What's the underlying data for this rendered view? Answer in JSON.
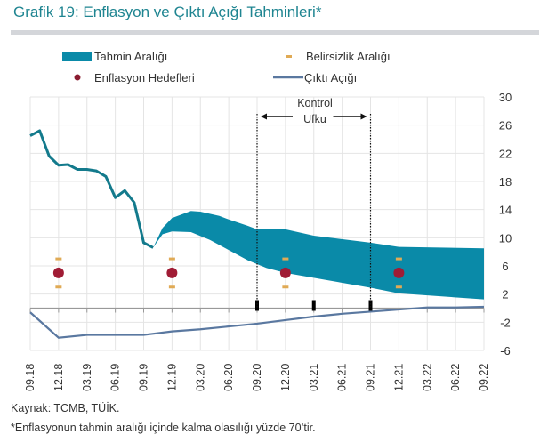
{
  "title": "Grafik 19: Enflasyon ve Çıktı Açığı Tahminleri*",
  "footer": {
    "source": "Kaynak: TCMB, TÜİK.",
    "note": "*Enflasyonun tahmin aralığı içinde kalma olasılığı yüzde 70’tir."
  },
  "colors": {
    "band": "#0a8aa8",
    "inflation": "#137a8c",
    "target": "#a01c35",
    "uncertainty": "#e0aa55",
    "output_gap": "#5a78a0",
    "title": "#1f8591"
  },
  "chart_data": {
    "type": "area",
    "legend": {
      "position": "top",
      "items": [
        "Tahmin Aralığı",
        "Belirsizlik Aralığı",
        "Enflasyon Hedefleri",
        "Çıktı Açığı"
      ]
    },
    "annotation": {
      "line1": "Kontrol",
      "line2": "Ufku",
      "from": "09.20",
      "to": "09.21"
    },
    "categories": [
      "09.18",
      "12.18",
      "03.19",
      "06.19",
      "09.19",
      "12.19",
      "03.20",
      "06.20",
      "09.20",
      "12.20",
      "03.21",
      "06.21",
      "09.21",
      "12.21",
      "03.22",
      "06.22",
      "09.22"
    ],
    "yaxis": {
      "position": "right",
      "ylim": [
        -6,
        30
      ],
      "ticks": [
        30,
        26,
        22,
        18,
        14,
        10,
        6,
        2,
        -2,
        -6
      ]
    },
    "grid": true,
    "inflation": {
      "x": [
        "09.18",
        "10.18",
        "11.18",
        "12.18",
        "01.19",
        "02.19",
        "03.19",
        "04.19",
        "05.19",
        "06.19",
        "07.19",
        "08.19",
        "09.19",
        "10.19"
      ],
      "y": [
        24.5,
        25.2,
        21.6,
        20.3,
        20.4,
        19.7,
        19.7,
        19.5,
        18.7,
        15.7,
        16.7,
        15.0,
        9.3,
        8.6
      ]
    },
    "forecast_band": {
      "name": "Tahmin Aralığı",
      "upper": {
        "x": [
          "10.19",
          "11.19",
          "12.19",
          "02.20",
          "03.20",
          "05.20",
          "06.20",
          "08.20",
          "09.20",
          "12.20",
          "03.21",
          "09.21",
          "12.21",
          "09.22"
        ],
        "y": [
          8.6,
          11.4,
          12.8,
          13.8,
          13.7,
          13.1,
          12.6,
          11.7,
          11.2,
          11.2,
          10.3,
          9.3,
          8.7,
          8.5
        ]
      },
      "lower": {
        "x": [
          "10.19",
          "11.19",
          "12.19",
          "02.20",
          "04.20",
          "08.20",
          "10.20",
          "12.20",
          "09.21",
          "12.21",
          "09.22"
        ],
        "y": [
          8.6,
          10.5,
          10.9,
          10.8,
          9.7,
          6.8,
          5.7,
          5.0,
          2.9,
          2.1,
          1.25
        ]
      }
    },
    "targets": {
      "name": "Enflasyon Hedefleri",
      "x": [
        "12.18",
        "12.19",
        "12.20",
        "12.21"
      ],
      "y": [
        5,
        5,
        5,
        5
      ]
    },
    "uncertainty": {
      "name": "Belirsizlik Aralığı",
      "x": [
        "12.18",
        "12.19",
        "12.20",
        "12.21"
      ],
      "low": [
        3,
        3,
        3,
        3
      ],
      "high": [
        7,
        7,
        7,
        7
      ]
    },
    "output_gap": {
      "name": "Çıktı Açığı",
      "x": [
        "09.18",
        "12.18",
        "03.19",
        "06.19",
        "09.19",
        "12.19",
        "03.20",
        "06.20",
        "09.20",
        "12.20",
        "03.21",
        "06.21",
        "09.21",
        "12.21",
        "03.22",
        "06.22",
        "09.22"
      ],
      "y": [
        -0.6,
        -4.2,
        -3.8,
        -3.8,
        -3.8,
        -3.3,
        -3.0,
        -2.6,
        -2.2,
        -1.7,
        -1.2,
        -0.8,
        -0.5,
        -0.2,
        0.1,
        0.1,
        0.2
      ]
    },
    "axis_markers": [
      "09.20",
      "03.21",
      "09.21"
    ]
  }
}
